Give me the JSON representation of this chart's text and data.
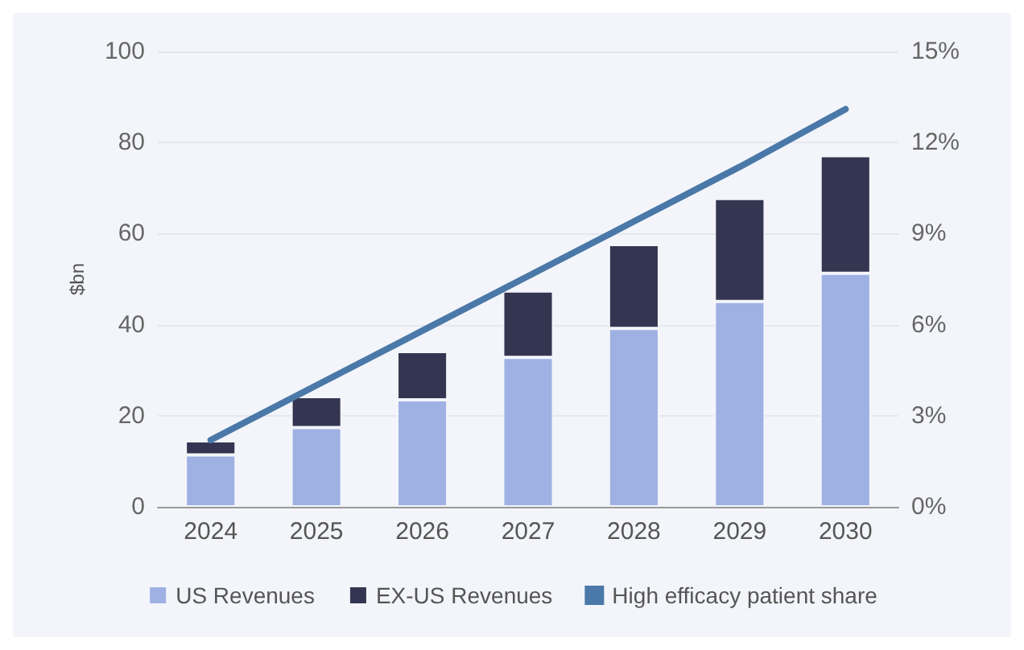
{
  "chart_data": {
    "type": "bar",
    "stacked": true,
    "ylabel": "$bn",
    "categories": [
      "2024",
      "2025",
      "2026",
      "2027",
      "2028",
      "2029",
      "2030"
    ],
    "series": [
      {
        "name": "US Revenues",
        "color": "#9fb1e3",
        "values": [
          11.4,
          17.4,
          23.5,
          32.8,
          39.2,
          45.1,
          51.3
        ]
      },
      {
        "name": "EX-US Revenues",
        "color": "#343651",
        "values": [
          3.1,
          6.8,
          10.6,
          14.6,
          18.4,
          22.6,
          25.8
        ]
      },
      {
        "name": "High efficacy patient share",
        "type": "line",
        "axis": "y2",
        "color": "#4a78a8",
        "marker": "none",
        "values": [
          2.2,
          4.0,
          5.8,
          7.6,
          9.4,
          11.2,
          13.1
        ]
      }
    ],
    "ylim": [
      0,
      100
    ],
    "yticks": [
      0,
      20,
      40,
      60,
      80,
      100
    ],
    "y2lim": [
      0,
      15
    ],
    "y2ticks": [
      {
        "value": 0,
        "label": "0%"
      },
      {
        "value": 3,
        "label": "3%"
      },
      {
        "value": 6,
        "label": "6%"
      },
      {
        "value": 9,
        "label": "9%"
      },
      {
        "value": 12,
        "label": "12%"
      },
      {
        "value": 15,
        "label": "15%"
      }
    ],
    "grid": "y",
    "legend": "bottom"
  }
}
